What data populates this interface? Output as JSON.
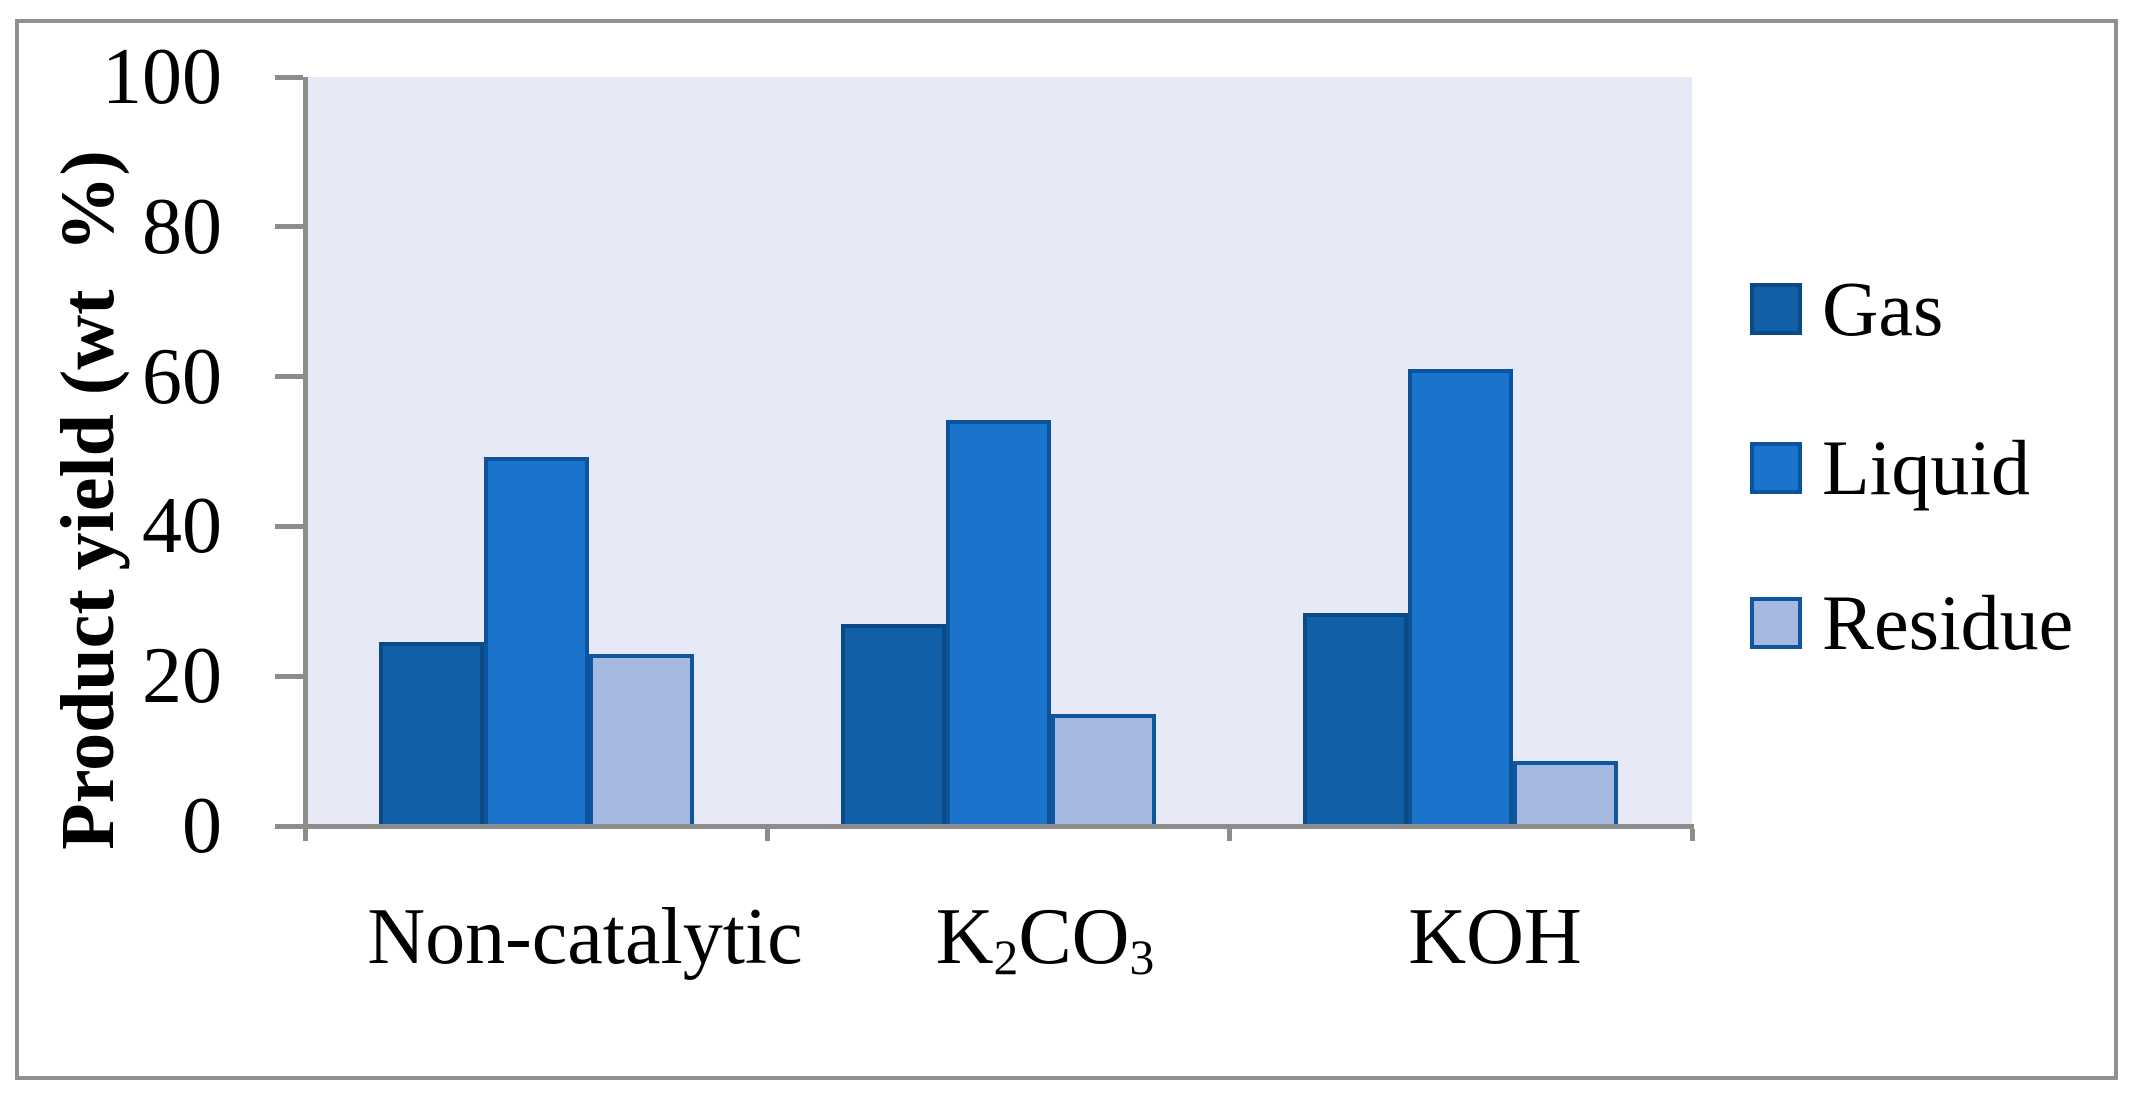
{
  "chart_data": {
    "type": "bar",
    "title": "",
    "ylabel": "Product yield (wt  %)",
    "xlabel": "",
    "ylim": [
      0,
      100
    ],
    "ytick_step": 20,
    "ytick_labels": [
      "0",
      "20",
      "40",
      "60",
      "80",
      "100"
    ],
    "grid": false,
    "legend_position": "right",
    "plot_bg": "#E7EAF6",
    "axis_color": "#8C8C8C",
    "frame_color": "#8F8F8F",
    "categories": [
      {
        "label": "Non-catalytic",
        "subscript_digits": false
      },
      {
        "label": "K2CO3",
        "subscript_digits": true
      },
      {
        "label": "KOH",
        "subscript_digits": false
      }
    ],
    "series": [
      {
        "name": "Gas",
        "fill": "#115FA6",
        "border": "#0A4A87",
        "values": [
          24.5,
          27.0,
          28.4
        ]
      },
      {
        "name": "Liquid",
        "fill": "#1B74CC",
        "border": "#0C539C",
        "values": [
          49.2,
          54.2,
          61.0
        ]
      },
      {
        "name": "Residue",
        "fill": "#A5B8DF",
        "border": "#0E56A0",
        "values": [
          23.0,
          15.0,
          8.7
        ]
      }
    ]
  }
}
